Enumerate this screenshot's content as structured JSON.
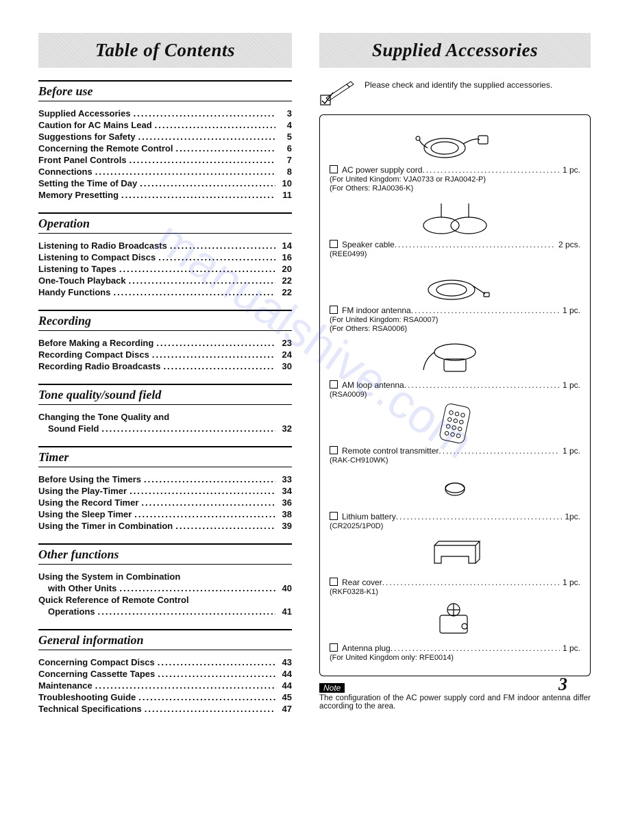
{
  "watermark": "manualshive.com",
  "page_number": "3",
  "left": {
    "banner_title": "Table of Contents",
    "sections": [
      {
        "heading": "Before use",
        "items": [
          {
            "label": "Supplied Accessories",
            "page": "3"
          },
          {
            "label": "Caution for AC Mains Lead",
            "page": "4"
          },
          {
            "label": "Suggestions for Safety",
            "page": "5"
          },
          {
            "label": "Concerning the Remote Control",
            "page": "6"
          },
          {
            "label": "Front Panel Controls",
            "page": "7"
          },
          {
            "label": "Connections",
            "page": "8"
          },
          {
            "label": "Setting the Time of Day",
            "page": "10"
          },
          {
            "label": "Memory Presetting",
            "page": "11"
          }
        ]
      },
      {
        "heading": "Operation",
        "items": [
          {
            "label": "Listening to Radio Broadcasts",
            "page": "14"
          },
          {
            "label": "Listening to Compact Discs",
            "page": "16"
          },
          {
            "label": "Listening to Tapes",
            "page": "20"
          },
          {
            "label": "One-Touch Playback",
            "page": "22"
          },
          {
            "label": "Handy Functions",
            "page": "22"
          }
        ]
      },
      {
        "heading": "Recording",
        "items": [
          {
            "label": "Before Making a Recording",
            "page": "23"
          },
          {
            "label": "Recording Compact Discs",
            "page": "24"
          },
          {
            "label": "Recording Radio Broadcasts",
            "page": "30"
          }
        ]
      },
      {
        "heading": "Tone quality/sound field",
        "items": [
          {
            "label": "Changing the Tone Quality and",
            "page": ""
          },
          {
            "label": "Sound Field",
            "page": "32",
            "sub": true
          }
        ]
      },
      {
        "heading": "Timer",
        "items": [
          {
            "label": "Before Using the Timers",
            "page": "33"
          },
          {
            "label": "Using the Play-Timer",
            "page": "34"
          },
          {
            "label": "Using the Record Timer",
            "page": "36"
          },
          {
            "label": "Using the Sleep Timer",
            "page": "38"
          },
          {
            "label": "Using the Timer in Combination",
            "page": "39"
          }
        ]
      },
      {
        "heading": "Other functions",
        "items": [
          {
            "label": "Using the System in Combination",
            "page": ""
          },
          {
            "label": "with Other Units",
            "page": "40",
            "sub": true
          },
          {
            "label": "Quick Reference of Remote Control",
            "page": ""
          },
          {
            "label": "Operations",
            "page": "41",
            "sub": true
          }
        ]
      },
      {
        "heading": "General information",
        "items": [
          {
            "label": "Concerning Compact Discs",
            "page": "43"
          },
          {
            "label": "Concerning Cassette Tapes",
            "page": "44"
          },
          {
            "label": "Maintenance",
            "page": "44"
          },
          {
            "label": "Troubleshooting Guide",
            "page": "45"
          },
          {
            "label": "Technical Specifications",
            "page": "47"
          }
        ]
      }
    ]
  },
  "right": {
    "banner_title": "Supplied Accessories",
    "intro": "Please check and identify the supplied accessories.",
    "items": [
      {
        "icon": "power-cord",
        "label": "AC power supply cord",
        "qty": "1 pc.",
        "subs": [
          "(For United Kingdom: VJA0733 or RJA0042-P)",
          "(For Others: RJA0036-K)"
        ]
      },
      {
        "icon": "speaker-cable",
        "label": "Speaker cable",
        "qty": "2 pcs.",
        "subs": [
          "(REE0499)"
        ]
      },
      {
        "icon": "fm-antenna",
        "label": "FM indoor antenna",
        "qty": "1 pc.",
        "subs": [
          "(For United Kingdom: RSA0007)",
          "(For Others: RSA0006)"
        ]
      },
      {
        "icon": "am-loop",
        "label": "AM loop antenna",
        "qty": "1 pc.",
        "subs": [
          "(RSA0009)"
        ]
      },
      {
        "icon": "remote",
        "label": "Remote control transmitter",
        "qty": "1 pc.",
        "subs": [
          "(RAK-CH910WK)"
        ]
      },
      {
        "icon": "battery",
        "label": "Lithium battery",
        "qty": "1pc.",
        "subs": [
          "(CR2025/1P0D)"
        ]
      },
      {
        "icon": "rear-cover",
        "label": "Rear cover",
        "qty": "1 pc.",
        "subs": [
          "(RKF0328-K1)"
        ]
      },
      {
        "icon": "antenna-plug",
        "label": "Antenna plug",
        "qty": "1 pc.",
        "subs": [
          "(For United Kingdom only: RFE0014)"
        ]
      }
    ],
    "note_label": "Note",
    "note_text": "The configuration of the AC power supply cord and FM indoor antenna differ according to the area."
  }
}
